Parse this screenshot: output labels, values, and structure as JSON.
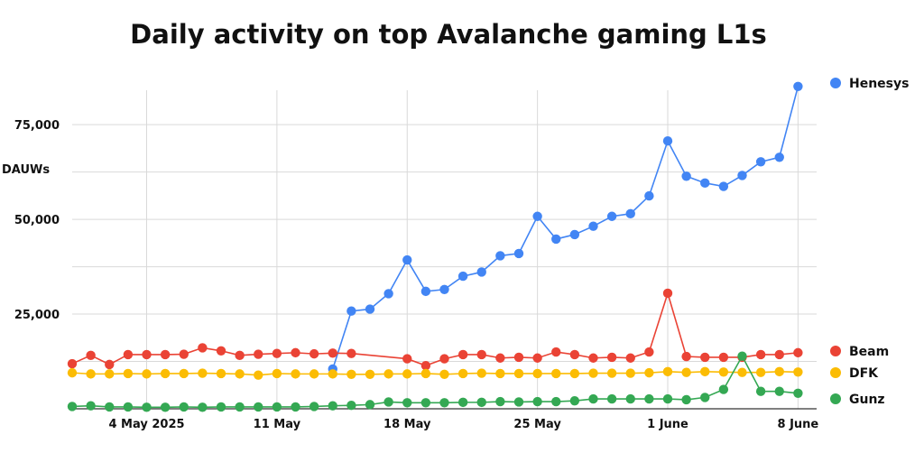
{
  "chart_data": {
    "type": "line",
    "title": "Daily activity on top Avalanche gaming L1s",
    "ylabel": "DAUWs",
    "xlabel": "",
    "ylim": [
      0,
      86000
    ],
    "yticks": [
      25000,
      50000,
      75000
    ],
    "ytick_labels": [
      "25,000",
      "50,000",
      "75,000"
    ],
    "x_domain": [
      "2025-04-30",
      "2025-06-09"
    ],
    "xticks": [
      "2025-05-04",
      "2025-05-11",
      "2025-05-18",
      "2025-05-25",
      "2025-06-01",
      "2025-06-08"
    ],
    "xtick_labels": [
      "4 May 2025",
      "11 May",
      "18 May",
      "25 May",
      "1 June",
      "8 June"
    ],
    "grid": true,
    "series": [
      {
        "name": "Henesys",
        "color": "#4285f4",
        "points": [
          {
            "x": "2025-05-14",
            "y": 10500
          },
          {
            "x": "2025-05-15",
            "y": 25800
          },
          {
            "x": "2025-05-16",
            "y": 26300
          },
          {
            "x": "2025-05-17",
            "y": 30400
          },
          {
            "x": "2025-05-18",
            "y": 39300
          },
          {
            "x": "2025-05-19",
            "y": 31000
          },
          {
            "x": "2025-05-20",
            "y": 31500
          },
          {
            "x": "2025-05-21",
            "y": 35000
          },
          {
            "x": "2025-05-22",
            "y": 36100
          },
          {
            "x": "2025-05-23",
            "y": 40400
          },
          {
            "x": "2025-05-24",
            "y": 41000
          },
          {
            "x": "2025-05-25",
            "y": 50800
          },
          {
            "x": "2025-05-26",
            "y": 44800
          },
          {
            "x": "2025-05-27",
            "y": 46000
          },
          {
            "x": "2025-05-28",
            "y": 48200
          },
          {
            "x": "2025-05-29",
            "y": 50800
          },
          {
            "x": "2025-05-30",
            "y": 51500
          },
          {
            "x": "2025-05-31",
            "y": 56200
          },
          {
            "x": "2025-06-01",
            "y": 70700
          },
          {
            "x": "2025-06-02",
            "y": 61400
          },
          {
            "x": "2025-06-03",
            "y": 59600
          },
          {
            "x": "2025-06-04",
            "y": 58700
          },
          {
            "x": "2025-06-05",
            "y": 61600
          },
          {
            "x": "2025-06-06",
            "y": 65200
          },
          {
            "x": "2025-06-07",
            "y": 66400
          },
          {
            "x": "2025-06-08",
            "y": 85100
          }
        ]
      },
      {
        "name": "Beam",
        "color": "#ea4335",
        "points": [
          {
            "x": "2025-04-30",
            "y": 11900
          },
          {
            "x": "2025-05-01",
            "y": 14100
          },
          {
            "x": "2025-05-02",
            "y": 11700
          },
          {
            "x": "2025-05-03",
            "y": 14300
          },
          {
            "x": "2025-05-04",
            "y": 14300
          },
          {
            "x": "2025-05-05",
            "y": 14300
          },
          {
            "x": "2025-05-06",
            "y": 14400
          },
          {
            "x": "2025-05-07",
            "y": 16100
          },
          {
            "x": "2025-05-08",
            "y": 15300
          },
          {
            "x": "2025-05-09",
            "y": 14100
          },
          {
            "x": "2025-05-10",
            "y": 14400
          },
          {
            "x": "2025-05-11",
            "y": 14600
          },
          {
            "x": "2025-05-12",
            "y": 14800
          },
          {
            "x": "2025-05-13",
            "y": 14500
          },
          {
            "x": "2025-05-14",
            "y": 14700
          },
          {
            "x": "2025-05-15",
            "y": 14600
          },
          {
            "x": "2025-05-18",
            "y": 13200
          },
          {
            "x": "2025-05-19",
            "y": 11400
          },
          {
            "x": "2025-05-20",
            "y": 13200
          },
          {
            "x": "2025-05-21",
            "y": 14300
          },
          {
            "x": "2025-05-22",
            "y": 14300
          },
          {
            "x": "2025-05-23",
            "y": 13400
          },
          {
            "x": "2025-05-24",
            "y": 13600
          },
          {
            "x": "2025-05-25",
            "y": 13400
          },
          {
            "x": "2025-05-26",
            "y": 15000
          },
          {
            "x": "2025-05-27",
            "y": 14300
          },
          {
            "x": "2025-05-28",
            "y": 13400
          },
          {
            "x": "2025-05-29",
            "y": 13600
          },
          {
            "x": "2025-05-30",
            "y": 13400
          },
          {
            "x": "2025-05-31",
            "y": 15000
          },
          {
            "x": "2025-06-01",
            "y": 30500
          },
          {
            "x": "2025-06-02",
            "y": 13800
          },
          {
            "x": "2025-06-03",
            "y": 13600
          },
          {
            "x": "2025-06-04",
            "y": 13600
          },
          {
            "x": "2025-06-05",
            "y": 13600
          },
          {
            "x": "2025-06-06",
            "y": 14300
          },
          {
            "x": "2025-06-07",
            "y": 14300
          },
          {
            "x": "2025-06-08",
            "y": 14800
          }
        ]
      },
      {
        "name": "DFK",
        "color": "#fbbc04",
        "points": [
          {
            "x": "2025-04-30",
            "y": 9500
          },
          {
            "x": "2025-05-01",
            "y": 9200
          },
          {
            "x": "2025-05-02",
            "y": 9200
          },
          {
            "x": "2025-05-03",
            "y": 9300
          },
          {
            "x": "2025-05-04",
            "y": 9200
          },
          {
            "x": "2025-05-05",
            "y": 9300
          },
          {
            "x": "2025-05-06",
            "y": 9300
          },
          {
            "x": "2025-05-07",
            "y": 9400
          },
          {
            "x": "2025-05-08",
            "y": 9300
          },
          {
            "x": "2025-05-09",
            "y": 9200
          },
          {
            "x": "2025-05-10",
            "y": 8900
          },
          {
            "x": "2025-05-11",
            "y": 9300
          },
          {
            "x": "2025-05-12",
            "y": 9200
          },
          {
            "x": "2025-05-13",
            "y": 9200
          },
          {
            "x": "2025-05-14",
            "y": 9200
          },
          {
            "x": "2025-05-15",
            "y": 9100
          },
          {
            "x": "2025-05-16",
            "y": 9100
          },
          {
            "x": "2025-05-17",
            "y": 9200
          },
          {
            "x": "2025-05-18",
            "y": 9200
          },
          {
            "x": "2025-05-19",
            "y": 9300
          },
          {
            "x": "2025-05-20",
            "y": 9100
          },
          {
            "x": "2025-05-21",
            "y": 9300
          },
          {
            "x": "2025-05-22",
            "y": 9400
          },
          {
            "x": "2025-05-23",
            "y": 9300
          },
          {
            "x": "2025-05-24",
            "y": 9300
          },
          {
            "x": "2025-05-25",
            "y": 9300
          },
          {
            "x": "2025-05-26",
            "y": 9300
          },
          {
            "x": "2025-05-27",
            "y": 9300
          },
          {
            "x": "2025-05-28",
            "y": 9400
          },
          {
            "x": "2025-05-29",
            "y": 9400
          },
          {
            "x": "2025-05-30",
            "y": 9400
          },
          {
            "x": "2025-05-31",
            "y": 9500
          },
          {
            "x": "2025-06-01",
            "y": 9800
          },
          {
            "x": "2025-06-02",
            "y": 9600
          },
          {
            "x": "2025-06-03",
            "y": 9800
          },
          {
            "x": "2025-06-04",
            "y": 9700
          },
          {
            "x": "2025-06-05",
            "y": 9600
          },
          {
            "x": "2025-06-06",
            "y": 9600
          },
          {
            "x": "2025-06-07",
            "y": 9800
          },
          {
            "x": "2025-06-08",
            "y": 9700
          }
        ]
      },
      {
        "name": "Gunz",
        "color": "#34a853",
        "points": [
          {
            "x": "2025-04-30",
            "y": 600
          },
          {
            "x": "2025-05-01",
            "y": 800
          },
          {
            "x": "2025-05-02",
            "y": 500
          },
          {
            "x": "2025-05-03",
            "y": 500
          },
          {
            "x": "2025-05-04",
            "y": 400
          },
          {
            "x": "2025-05-05",
            "y": 400
          },
          {
            "x": "2025-05-06",
            "y": 500
          },
          {
            "x": "2025-05-07",
            "y": 400
          },
          {
            "x": "2025-05-08",
            "y": 500
          },
          {
            "x": "2025-05-09",
            "y": 500
          },
          {
            "x": "2025-05-10",
            "y": 500
          },
          {
            "x": "2025-05-11",
            "y": 500
          },
          {
            "x": "2025-05-12",
            "y": 500
          },
          {
            "x": "2025-05-13",
            "y": 600
          },
          {
            "x": "2025-05-14",
            "y": 800
          },
          {
            "x": "2025-05-15",
            "y": 900
          },
          {
            "x": "2025-05-16",
            "y": 1100
          },
          {
            "x": "2025-05-17",
            "y": 1800
          },
          {
            "x": "2025-05-18",
            "y": 1600
          },
          {
            "x": "2025-05-19",
            "y": 1600
          },
          {
            "x": "2025-05-20",
            "y": 1600
          },
          {
            "x": "2025-05-21",
            "y": 1700
          },
          {
            "x": "2025-05-22",
            "y": 1700
          },
          {
            "x": "2025-05-23",
            "y": 1900
          },
          {
            "x": "2025-05-24",
            "y": 1800
          },
          {
            "x": "2025-05-25",
            "y": 1900
          },
          {
            "x": "2025-05-26",
            "y": 1900
          },
          {
            "x": "2025-05-27",
            "y": 2100
          },
          {
            "x": "2025-05-28",
            "y": 2600
          },
          {
            "x": "2025-05-29",
            "y": 2600
          },
          {
            "x": "2025-05-30",
            "y": 2600
          },
          {
            "x": "2025-05-31",
            "y": 2600
          },
          {
            "x": "2025-06-01",
            "y": 2600
          },
          {
            "x": "2025-06-02",
            "y": 2400
          },
          {
            "x": "2025-06-03",
            "y": 3000
          },
          {
            "x": "2025-06-04",
            "y": 5100
          },
          {
            "x": "2025-06-05",
            "y": 13900
          },
          {
            "x": "2025-06-06",
            "y": 4600
          },
          {
            "x": "2025-06-07",
            "y": 4600
          },
          {
            "x": "2025-06-08",
            "y": 4100
          }
        ]
      }
    ]
  }
}
